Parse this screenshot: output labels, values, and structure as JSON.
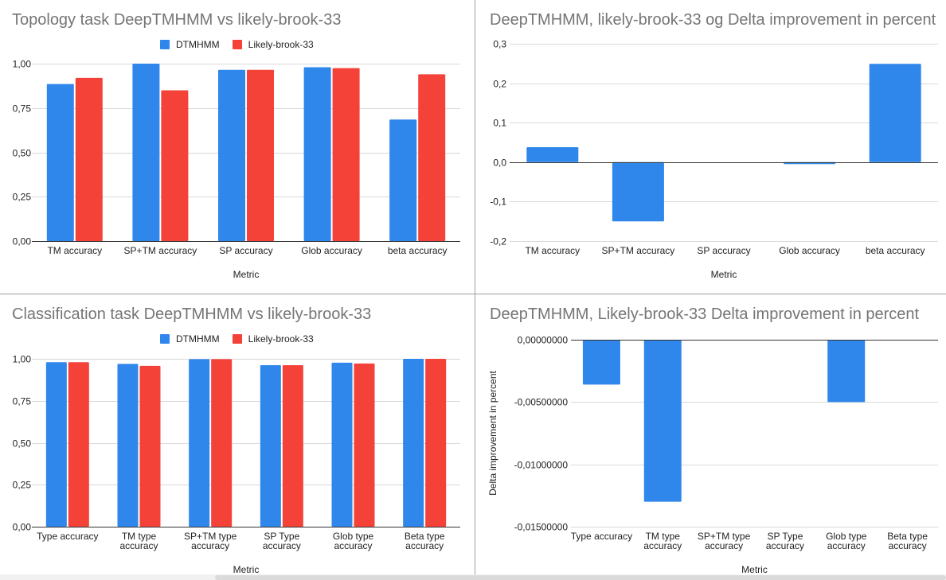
{
  "colors": {
    "series_blue": "#2f86eb",
    "series_red": "#f44238",
    "grid": "#d9d9d9",
    "axis": "#333333",
    "title": "#757575"
  },
  "chart_data": [
    {
      "type": "bar",
      "title": "Topology task DeepTMHMM vs likely-brook-33",
      "xlabel": "Metric",
      "ylabel": "",
      "categories": [
        "TM accuracy",
        "SP+TM accuracy",
        "SP accuracy",
        "Glob accuracy",
        "beta accuracy"
      ],
      "series": [
        {
          "name": "DTMHMM",
          "values": [
            0.885,
            1.0,
            0.965,
            0.98,
            0.685
          ]
        },
        {
          "name": "Likely-brook-33",
          "values": [
            0.92,
            0.85,
            0.965,
            0.975,
            0.94
          ]
        }
      ],
      "ylim": [
        0,
        1
      ],
      "yticks": [
        0,
        0.25,
        0.5,
        0.75,
        1
      ],
      "ytick_labels": [
        "0,00",
        "0,25",
        "0,50",
        "0,75",
        "1,00"
      ],
      "legend": "top-center",
      "grid": true
    },
    {
      "type": "bar",
      "title": "DeepTMHMM, likely-brook-33 og Delta improvement in percent",
      "xlabel": "",
      "ylabel": "",
      "categories": [
        "TM accuracy",
        "SP+TM accuracy",
        "SP accuracy",
        "Glob accuracy",
        "beta accuracy"
      ],
      "series": [
        {
          "values": [
            0.038,
            -0.15,
            0.0,
            -0.005,
            0.249
          ]
        }
      ],
      "ylim": [
        -0.2,
        0.3
      ],
      "yticks": [
        -0.2,
        -0.1,
        0,
        0.1,
        0.2,
        0.3
      ],
      "ytick_labels": [
        "-0,2",
        "-0,1",
        "0,0",
        "0,1",
        "0,2",
        "0,3"
      ],
      "grid": true,
      "bottom_label": "Metric"
    },
    {
      "type": "bar",
      "title": "Classification task DeepTMHMM vs likely-brook-33",
      "xlabel": "Metric",
      "ylabel": "",
      "categories": [
        "Type accuracy",
        "TM type accuracy",
        "SP+TM type accuracy",
        "SP Type accuracy",
        "Glob type accuracy",
        "Beta type accuracy"
      ],
      "series": [
        {
          "name": "DTMHMM",
          "values": [
            0.98,
            0.97,
            0.998,
            0.962,
            0.977,
            1.0
          ]
        },
        {
          "name": "Likely-brook-33",
          "values": [
            0.98,
            0.958,
            0.998,
            0.962,
            0.972,
            1.0
          ]
        }
      ],
      "ylim": [
        0,
        1
      ],
      "yticks": [
        0,
        0.25,
        0.5,
        0.75,
        1
      ],
      "ytick_labels": [
        "0,00",
        "0,25",
        "0,50",
        "0,75",
        "1,00"
      ],
      "legend": "top-center",
      "grid": true
    },
    {
      "type": "bar",
      "title": "DeepTMHMM, Likely-brook-33 Delta improvement in percent",
      "xlabel": "Metric",
      "ylabel": "Delta improvement in percent",
      "categories": [
        "Type accuracy",
        "TM type accuracy",
        "SP+TM type accuracy",
        "SP Type accuracy",
        "Glob type accuracy",
        "Beta type accuracy"
      ],
      "series": [
        {
          "values": [
            -0.0036,
            -0.013,
            0.0,
            0.0,
            -0.005,
            0.0
          ]
        }
      ],
      "ylim": [
        -0.015,
        0
      ],
      "yticks": [
        -0.015,
        -0.01,
        -0.005,
        0
      ],
      "ytick_labels": [
        "-0,01500000",
        "-0,01000000",
        "-0,00500000",
        "0,00000000"
      ],
      "grid": true
    }
  ]
}
